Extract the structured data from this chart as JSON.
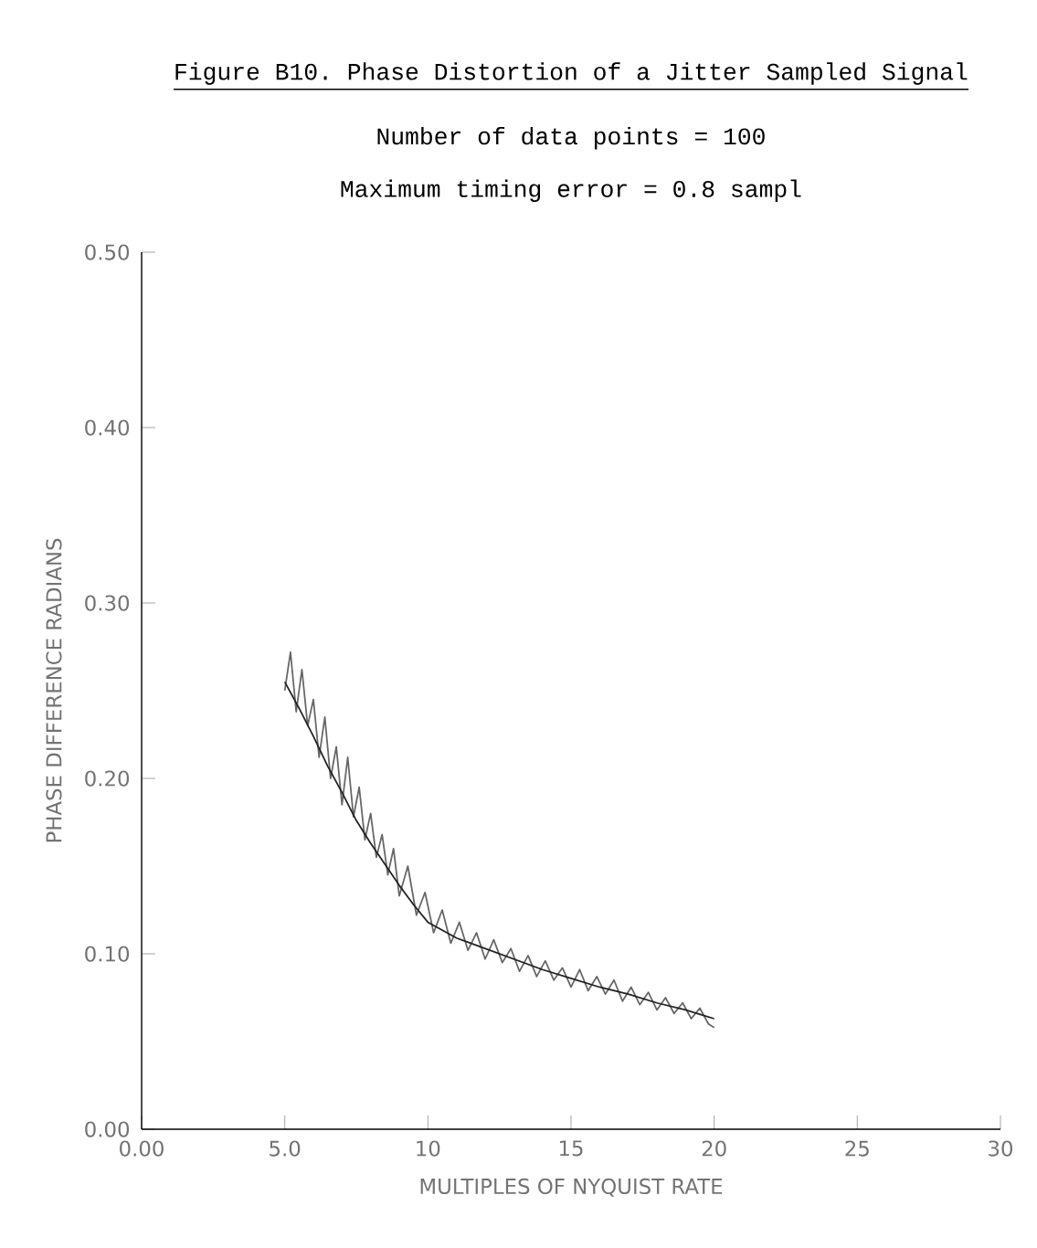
{
  "chart_data": {
    "type": "line",
    "title": "Figure B10. Phase Distortion of a Jitter Sampled Signal",
    "annotations": [
      "Number of data points = 100",
      "Maximum timing error = 0.8 sampl"
    ],
    "xlabel": "MULTIPLES OF NYQUIST RATE",
    "ylabel": "PHASE DIFFERENCE RADIANS",
    "xlim": [
      0,
      30
    ],
    "ylim": [
      0,
      0.5
    ],
    "xticks": [
      {
        "value": 0,
        "label": "0.00"
      },
      {
        "value": 5,
        "label": "5.0"
      },
      10,
      15,
      20,
      25,
      30
    ],
    "yticks": [
      {
        "value": 0,
        "label": "0.00"
      },
      {
        "value": 0.1,
        "label": "0.10"
      },
      {
        "value": 0.2,
        "label": "0.20"
      },
      {
        "value": 0.3,
        "label": "0.30"
      },
      {
        "value": 0.4,
        "label": "0.40"
      },
      {
        "value": 0.5,
        "label": "0.50"
      }
    ],
    "series": [
      {
        "color": "#666666",
        "x": [
          5.0,
          5.2,
          5.4,
          5.6,
          5.8,
          6.0,
          6.2,
          6.4,
          6.6,
          6.8,
          7.0,
          7.2,
          7.4,
          7.6,
          7.8,
          8.0,
          8.2,
          8.4,
          8.6,
          8.8,
          9.0,
          9.3,
          9.6,
          9.9,
          10.2,
          10.5,
          10.8,
          11.1,
          11.4,
          11.7,
          12.0,
          12.3,
          12.6,
          12.9,
          13.2,
          13.5,
          13.8,
          14.1,
          14.4,
          14.7,
          15.0,
          15.3,
          15.6,
          15.9,
          16.2,
          16.5,
          16.8,
          17.1,
          17.4,
          17.7,
          18.0,
          18.3,
          18.6,
          18.9,
          19.2,
          19.5,
          19.8,
          20.0
        ],
        "values": [
          0.25,
          0.272,
          0.238,
          0.262,
          0.23,
          0.245,
          0.212,
          0.235,
          0.2,
          0.218,
          0.185,
          0.212,
          0.178,
          0.195,
          0.165,
          0.18,
          0.155,
          0.168,
          0.145,
          0.16,
          0.133,
          0.15,
          0.122,
          0.135,
          0.112,
          0.125,
          0.106,
          0.118,
          0.102,
          0.112,
          0.097,
          0.108,
          0.095,
          0.103,
          0.09,
          0.099,
          0.087,
          0.096,
          0.085,
          0.092,
          0.081,
          0.091,
          0.079,
          0.087,
          0.077,
          0.085,
          0.073,
          0.081,
          0.071,
          0.078,
          0.068,
          0.075,
          0.066,
          0.072,
          0.063,
          0.069,
          0.06,
          0.058
        ]
      },
      {
        "color": "#222222",
        "x": [
          5.0,
          5.5,
          6,
          6.5,
          7,
          7.5,
          8,
          8.5,
          9,
          9.5,
          10,
          11,
          12,
          13,
          14,
          15,
          16,
          17,
          18,
          19,
          20
        ],
        "values": [
          0.255,
          0.24,
          0.224,
          0.207,
          0.192,
          0.176,
          0.163,
          0.151,
          0.139,
          0.128,
          0.118,
          0.109,
          0.103,
          0.097,
          0.091,
          0.086,
          0.081,
          0.077,
          0.072,
          0.068,
          0.063
        ]
      }
    ]
  }
}
